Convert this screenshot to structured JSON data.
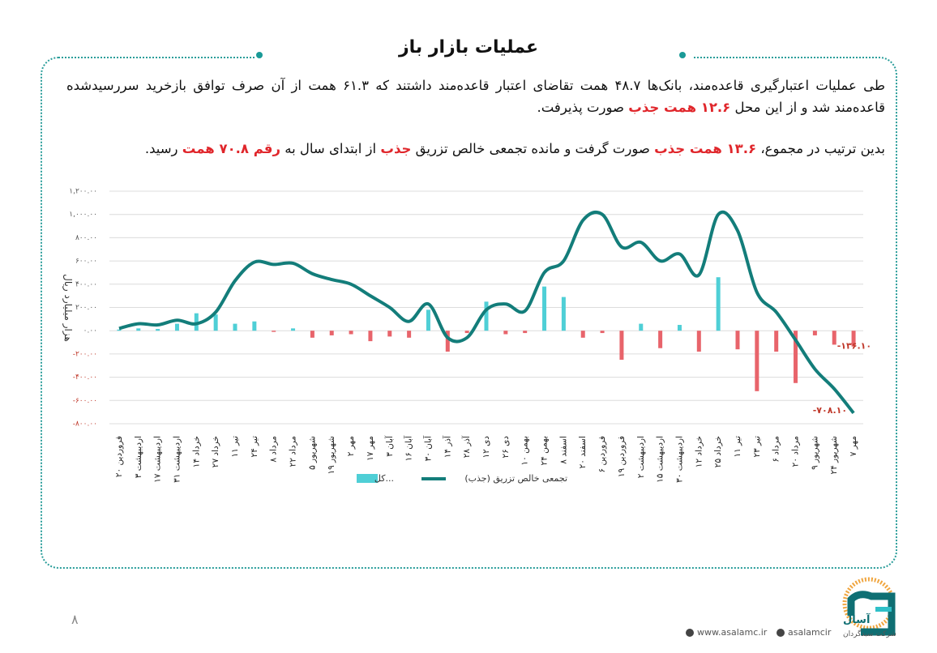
{
  "header": {
    "title": "عملیات بازار باز"
  },
  "paragraphs": [
    [
      "طی عملیات اعتبارگیری قاعده‌مند، بانک‌ها ۴۸.۷ همت تقاضای اعتبار قاعده‌مند داشتند که ۶۱.۳ همت از آن صرف توافق بازخرید سررسیدشده قاعده‌مند شد و از این محل ",
      "۱۲.۶ همت جذب",
      " صورت پذیرفت."
    ],
    [
      "بدین ترتیب در مجموع، ",
      "۱۳.۶ همت جذب",
      " صورت گرفت و مانده تجمعی خالص تزریق ",
      "جذب",
      " از ابتدای سال به ",
      "رقم ۷۰.۸ همت",
      " رسید."
    ]
  ],
  "chart_data": {
    "type": "bar",
    "y_label": "هزار میلیارد ریال",
    "categories": [
      "۲۰ فروردین",
      "۳ اردیبهشت",
      "۱۷ اردیبهشت",
      "۳۱ اردیبهشت",
      "۱۴ خرداد",
      "۲۷ خرداد",
      "۱۱ تیر",
      "۲۴ تیر",
      "۸ مرداد",
      "۲۲ مرداد",
      "۵ شهریور",
      "۱۹ شهریور",
      "۲ مهر",
      "۱۷ مهر",
      "۳ آبان",
      "۱۶ آبان",
      "۳۰ آبان",
      "۱۴ آذر",
      "۲۸ آذر",
      "۱۲ دی",
      "۲۶ دی",
      "۱۰ بهمن",
      "۲۴ بهمن",
      "۸ اسفند",
      "۲۰ اسفند",
      "۶ فروردین",
      "۱۹ فروردین",
      "۲ اردیبهشت",
      "۱۵ اردیبهشت",
      "۳۰ اردیبهشت",
      "۱۲ خرداد",
      "۲۵ خرداد",
      "۱۱ تیر",
      "۲۳ تیر",
      "۶ مرداد",
      "۲۰ مرداد",
      "۹ شهریور",
      "۲۴ شهریور",
      "۷ مهر"
    ],
    "series": [
      {
        "name": "کل...",
        "type": "bar",
        "color": "#4fcfd6",
        "negative_color": "#e8646b",
        "label_color": "#c0392b",
        "values": [
          10,
          20,
          15,
          60,
          150,
          140,
          60,
          80,
          -10,
          20,
          -60,
          -40,
          -30,
          -90,
          -50,
          -60,
          180,
          -180,
          -20,
          250,
          -30,
          -20,
          380,
          290,
          -60,
          -20,
          -250,
          60,
          -150,
          50,
          -180,
          460,
          -160,
          -520,
          -180,
          -450,
          -40,
          -120,
          -136.1
        ],
        "value_labels": [
          null,
          null,
          null,
          null,
          null,
          null,
          null,
          null,
          null,
          null,
          null,
          null,
          null,
          null,
          null,
          null,
          null,
          null,
          null,
          null,
          null,
          null,
          null,
          null,
          null,
          null,
          null,
          null,
          null,
          null,
          null,
          null,
          null,
          null,
          null,
          null,
          null,
          null,
          "-۱۳۶.۱۰"
        ]
      },
      {
        "name": "تجمعی خالص تزریق (جذب)",
        "type": "line",
        "color": "#137d7a",
        "label_color": "#c0392b",
        "values": [
          20,
          60,
          50,
          90,
          60,
          160,
          430,
          590,
          570,
          580,
          490,
          440,
          400,
          300,
          200,
          80,
          230,
          -60,
          -60,
          180,
          230,
          170,
          500,
          600,
          950,
          1000,
          720,
          760,
          600,
          660,
          480,
          1000,
          860,
          330,
          160,
          -80,
          -330,
          -500,
          -708.1
        ],
        "value_labels": [
          null,
          null,
          null,
          null,
          null,
          null,
          null,
          null,
          null,
          null,
          null,
          null,
          null,
          null,
          null,
          null,
          null,
          null,
          null,
          null,
          null,
          null,
          null,
          null,
          null,
          null,
          null,
          null,
          null,
          null,
          null,
          null,
          null,
          null,
          null,
          null,
          null,
          null,
          "-۷۰۸.۱۰"
        ]
      }
    ],
    "ylim": [
      -800,
      1200
    ],
    "yticks": [
      {
        "value": -800,
        "label": "-۸۰۰.۰۰"
      },
      {
        "value": -600,
        "label": "-۶۰۰.۰۰"
      },
      {
        "value": -400,
        "label": "-۴۰۰.۰۰"
      },
      {
        "value": -200,
        "label": "-۲۰۰.۰۰"
      },
      {
        "value": 0,
        "label": "۰.۰۰"
      },
      {
        "value": 200,
        "label": "۲۰۰.۰۰"
      },
      {
        "value": 400,
        "label": "۴۰۰.۰۰"
      },
      {
        "value": 600,
        "label": "۶۰۰.۰۰"
      },
      {
        "value": 800,
        "label": "۸۰۰.۰۰"
      },
      {
        "value": 1000,
        "label": "۱,۰۰۰.۰۰"
      },
      {
        "value": 1200,
        "label": "۱,۲۰۰.۰۰"
      }
    ],
    "grid": true
  },
  "footer": {
    "page_number": "۸",
    "website": "www.asalamc.ir",
    "social": "asalamcir",
    "logo_name": "آسال",
    "logo_subtitle": "شرکت سبدگردان"
  }
}
